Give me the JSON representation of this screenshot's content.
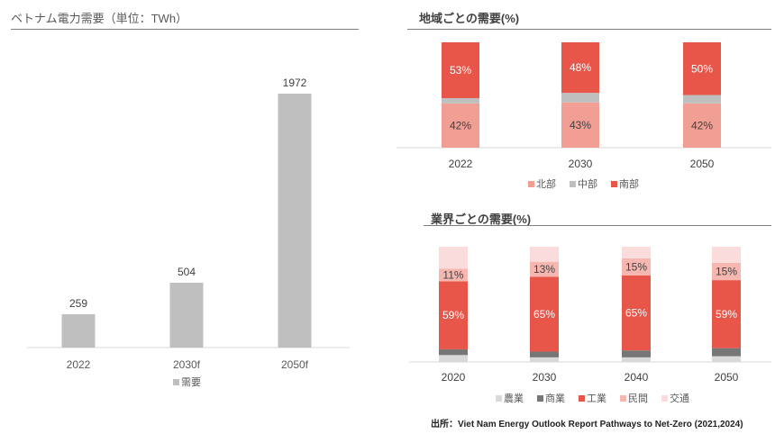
{
  "titles": {
    "left": "ベトナム電力需要（単位：TWh）",
    "right_top": "地域ごとの需要(%)",
    "right_bottom": "業界ごとの需要(%)"
  },
  "source": "出所：Viet Nam Energy Outlook Report Pathways to Net-Zero (2021,2024)",
  "chart_data": [
    {
      "type": "bar",
      "title": "ベトナム電力需要（単位：TWh）",
      "categories": [
        "2022",
        "2030f",
        "2050f"
      ],
      "series": [
        {
          "name": "需要",
          "values": [
            259,
            504,
            1972
          ],
          "color": "#bfbfbf"
        }
      ],
      "ylim": [
        0,
        2140
      ],
      "grid": false,
      "legend": "bottom"
    },
    {
      "type": "bar",
      "stacked": true,
      "title": "地域ごとの需要(%)",
      "categories": [
        "2022",
        "2030",
        "2050"
      ],
      "series": [
        {
          "name": "北部",
          "values": [
            42,
            43,
            42
          ],
          "color": "#f19f95",
          "labels": [
            "42%",
            "43%",
            "42%"
          ]
        },
        {
          "name": "中部",
          "values": [
            5,
            9,
            8
          ],
          "color": "#bfbfbf",
          "labels": [
            "",
            "",
            ""
          ]
        },
        {
          "name": "南部",
          "values": [
            53,
            48,
            50
          ],
          "color": "#e8564a",
          "labels": [
            "53%",
            "48%",
            "50%"
          ]
        }
      ],
      "ylim": [
        0,
        100
      ],
      "legend": "bottom"
    },
    {
      "type": "bar",
      "stacked": true,
      "title": "業界ごとの需要(%)",
      "categories": [
        "2020",
        "2030",
        "2040",
        "2050"
      ],
      "series": [
        {
          "name": "農業",
          "values": [
            6,
            4,
            4,
            5
          ],
          "color": "#d9d9d9",
          "labels": [
            "",
            "",
            "",
            ""
          ]
        },
        {
          "name": "商業",
          "values": [
            5,
            5,
            6,
            7
          ],
          "color": "#767676",
          "labels": [
            "",
            "",
            "",
            ""
          ]
        },
        {
          "name": "工業",
          "values": [
            59,
            65,
            65,
            59
          ],
          "color": "#e8564a",
          "labels": [
            "59%",
            "65%",
            "65%",
            "59%"
          ]
        },
        {
          "name": "民間",
          "values": [
            11,
            13,
            15,
            15
          ],
          "color": "#f5b7b0",
          "labels": [
            "11%",
            "13%",
            "15%",
            "15%"
          ]
        },
        {
          "name": "交通",
          "values": [
            19,
            13,
            10,
            14
          ],
          "color": "#fbdcdc",
          "labels": [
            "",
            "",
            "",
            ""
          ]
        }
      ],
      "ylim": [
        0,
        100
      ],
      "legend": "bottom"
    }
  ]
}
